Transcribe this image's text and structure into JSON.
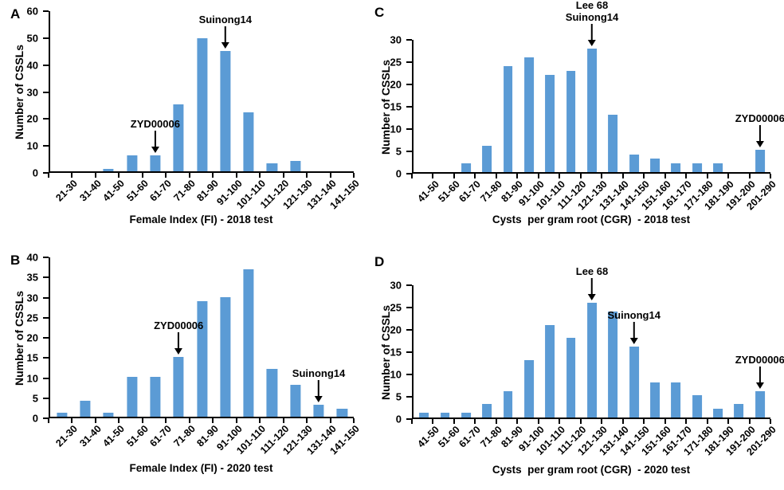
{
  "figure": {
    "background": "#ffffff",
    "text_color": "#000000"
  },
  "chart_data": [
    {
      "panel_label": "A",
      "type": "bar",
      "xlabel": "Female Index (FI) - 2018 test",
      "ylabel": "Number of CSSLs",
      "ylim": [
        0,
        60
      ],
      "ytick_step": 10,
      "grid": false,
      "legend": false,
      "bar_color": "#5B9BD5",
      "axis_color": "#000000",
      "categories": [
        "21-30",
        "31-40",
        "41-50",
        "51-60",
        "61-70",
        "71-80",
        "81-90",
        "91-100",
        "101-110",
        "111-120",
        "121-130",
        "131-140",
        "141-150"
      ],
      "values": [
        0,
        0,
        1,
        6,
        6,
        25,
        50,
        45,
        22,
        3,
        4,
        0,
        0
      ],
      "annotations": [
        {
          "lines": [
            "Suinong14"
          ],
          "category": "91-100",
          "value": 45
        },
        {
          "lines": [
            "ZYD00006"
          ],
          "category": "61-70",
          "value": 6
        }
      ]
    },
    {
      "panel_label": "B",
      "type": "bar",
      "xlabel": "Female Index (FI) - 2020 test",
      "ylabel": "Number of CSSLs",
      "ylim": [
        0,
        40
      ],
      "ytick_step": 5,
      "grid": false,
      "legend": false,
      "bar_color": "#5B9BD5",
      "axis_color": "#000000",
      "categories": [
        "21-30",
        "31-40",
        "41-50",
        "51-60",
        "61-70",
        "71-80",
        "81-90",
        "91-100",
        "101-110",
        "111-120",
        "121-130",
        "131-140",
        "141-150"
      ],
      "values": [
        1,
        4,
        1,
        10,
        10,
        15,
        29,
        30,
        37,
        12,
        8,
        3,
        2
      ],
      "annotations": [
        {
          "lines": [
            "ZYD00006"
          ],
          "category": "71-80",
          "value": 15
        },
        {
          "lines": [
            "Suinong14"
          ],
          "category": "131-140",
          "value": 3
        }
      ]
    },
    {
      "panel_label": "C",
      "type": "bar",
      "xlabel": "Cysts  per gram root (CGR)  - 2018 test",
      "ylabel": "Number of CSSLs",
      "ylim": [
        0,
        30
      ],
      "ytick_step": 5,
      "grid": false,
      "legend": false,
      "bar_color": "#5B9BD5",
      "axis_color": "#000000",
      "categories": [
        "41-50",
        "51-60",
        "61-70",
        "71-80",
        "81-90",
        "91-100",
        "101-110",
        "111-120",
        "121-130",
        "131-140",
        "141-150",
        "151-160",
        "161-170",
        "171-180",
        "181-190",
        "191-200",
        "201-290"
      ],
      "values": [
        0,
        0,
        2,
        6,
        24,
        26,
        22,
        23,
        28,
        13,
        4,
        3,
        2,
        2,
        2,
        0,
        5
      ],
      "annotations": [
        {
          "lines": [
            "Lee 68",
            "Suinong14"
          ],
          "category": "121-130",
          "value": 28
        },
        {
          "lines": [
            "ZYD00006"
          ],
          "category": "201-290",
          "value": 5
        }
      ]
    },
    {
      "panel_label": "D",
      "type": "bar",
      "xlabel": "Cysts  per gram root (CGR)  - 2020 test",
      "ylabel": "Number of CSSLs",
      "ylim": [
        0,
        30
      ],
      "ytick_step": 5,
      "grid": false,
      "legend": false,
      "bar_color": "#5B9BD5",
      "axis_color": "#000000",
      "categories": [
        "41-50",
        "51-60",
        "61-70",
        "71-80",
        "81-90",
        "91-100",
        "101-110",
        "111-120",
        "121-130",
        "131-140",
        "141-150",
        "151-160",
        "161-170",
        "171-180",
        "181-190",
        "191-200",
        "201-290"
      ],
      "values": [
        1,
        1,
        1,
        3,
        6,
        13,
        21,
        18,
        26,
        24,
        16,
        8,
        8,
        5,
        2,
        3,
        6
      ],
      "annotations": [
        {
          "lines": [
            "Lee 68"
          ],
          "category": "121-130",
          "value": 26
        },
        {
          "lines": [
            "Suinong14"
          ],
          "category": "141-150",
          "value": 16
        },
        {
          "lines": [
            "ZYD00006"
          ],
          "category": "201-290",
          "value": 6
        }
      ]
    }
  ]
}
